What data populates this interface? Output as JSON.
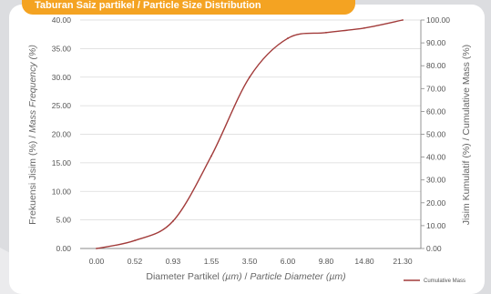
{
  "banner": {
    "text": "Taburan Saiz partikel / Particle Size Distribution"
  },
  "colors": {
    "line": "#a23b3a",
    "banner": "#f4a322",
    "grid": "#d9d9d9",
    "axis": "#8a8a8a"
  },
  "chart_data": {
    "type": "line",
    "x_ticks": [
      "0.00",
      "0.52",
      "0.93",
      "1.55",
      "3.50",
      "6.00",
      "9.80",
      "14.80",
      "21.30"
    ],
    "y_left_ticks": [
      "0.00",
      "5.00",
      "10.00",
      "15.00",
      "20.00",
      "25.00",
      "30.00",
      "35.00",
      "40.00"
    ],
    "y_right_ticks": [
      "0.00",
      "10.00",
      "20.00",
      "30.00",
      "40.00",
      "50.00",
      "60.00",
      "70.00",
      "80.00",
      "90.00",
      "100.00"
    ],
    "ylim_left": [
      0,
      40
    ],
    "ylim_right": [
      0,
      100
    ],
    "xlabel_plain": "Diameter Partikel ",
    "xlabel_unit": "(µm)",
    "xlabel_sep": " / ",
    "xlabel_en": "Particle Diameter",
    "ylabel_left_plain": "Frekuensi Jisim (%) / ",
    "ylabel_left_en": "Mass Frequency (%)",
    "ylabel_right": "Jisim Kumulatif (%) / Cumulative Mass (%)",
    "grid": true,
    "legend_position": "bottom-right",
    "series": [
      {
        "name": "Cumulative Mass",
        "axis": "right",
        "x": [
          "0.00",
          "0.52",
          "0.93",
          "1.55",
          "3.50",
          "6.00",
          "9.80",
          "14.80",
          "21.30"
        ],
        "values": [
          0.0,
          3.5,
          12.0,
          40.5,
          75.0,
          92.0,
          94.5,
          96.5,
          100.0
        ]
      }
    ]
  }
}
